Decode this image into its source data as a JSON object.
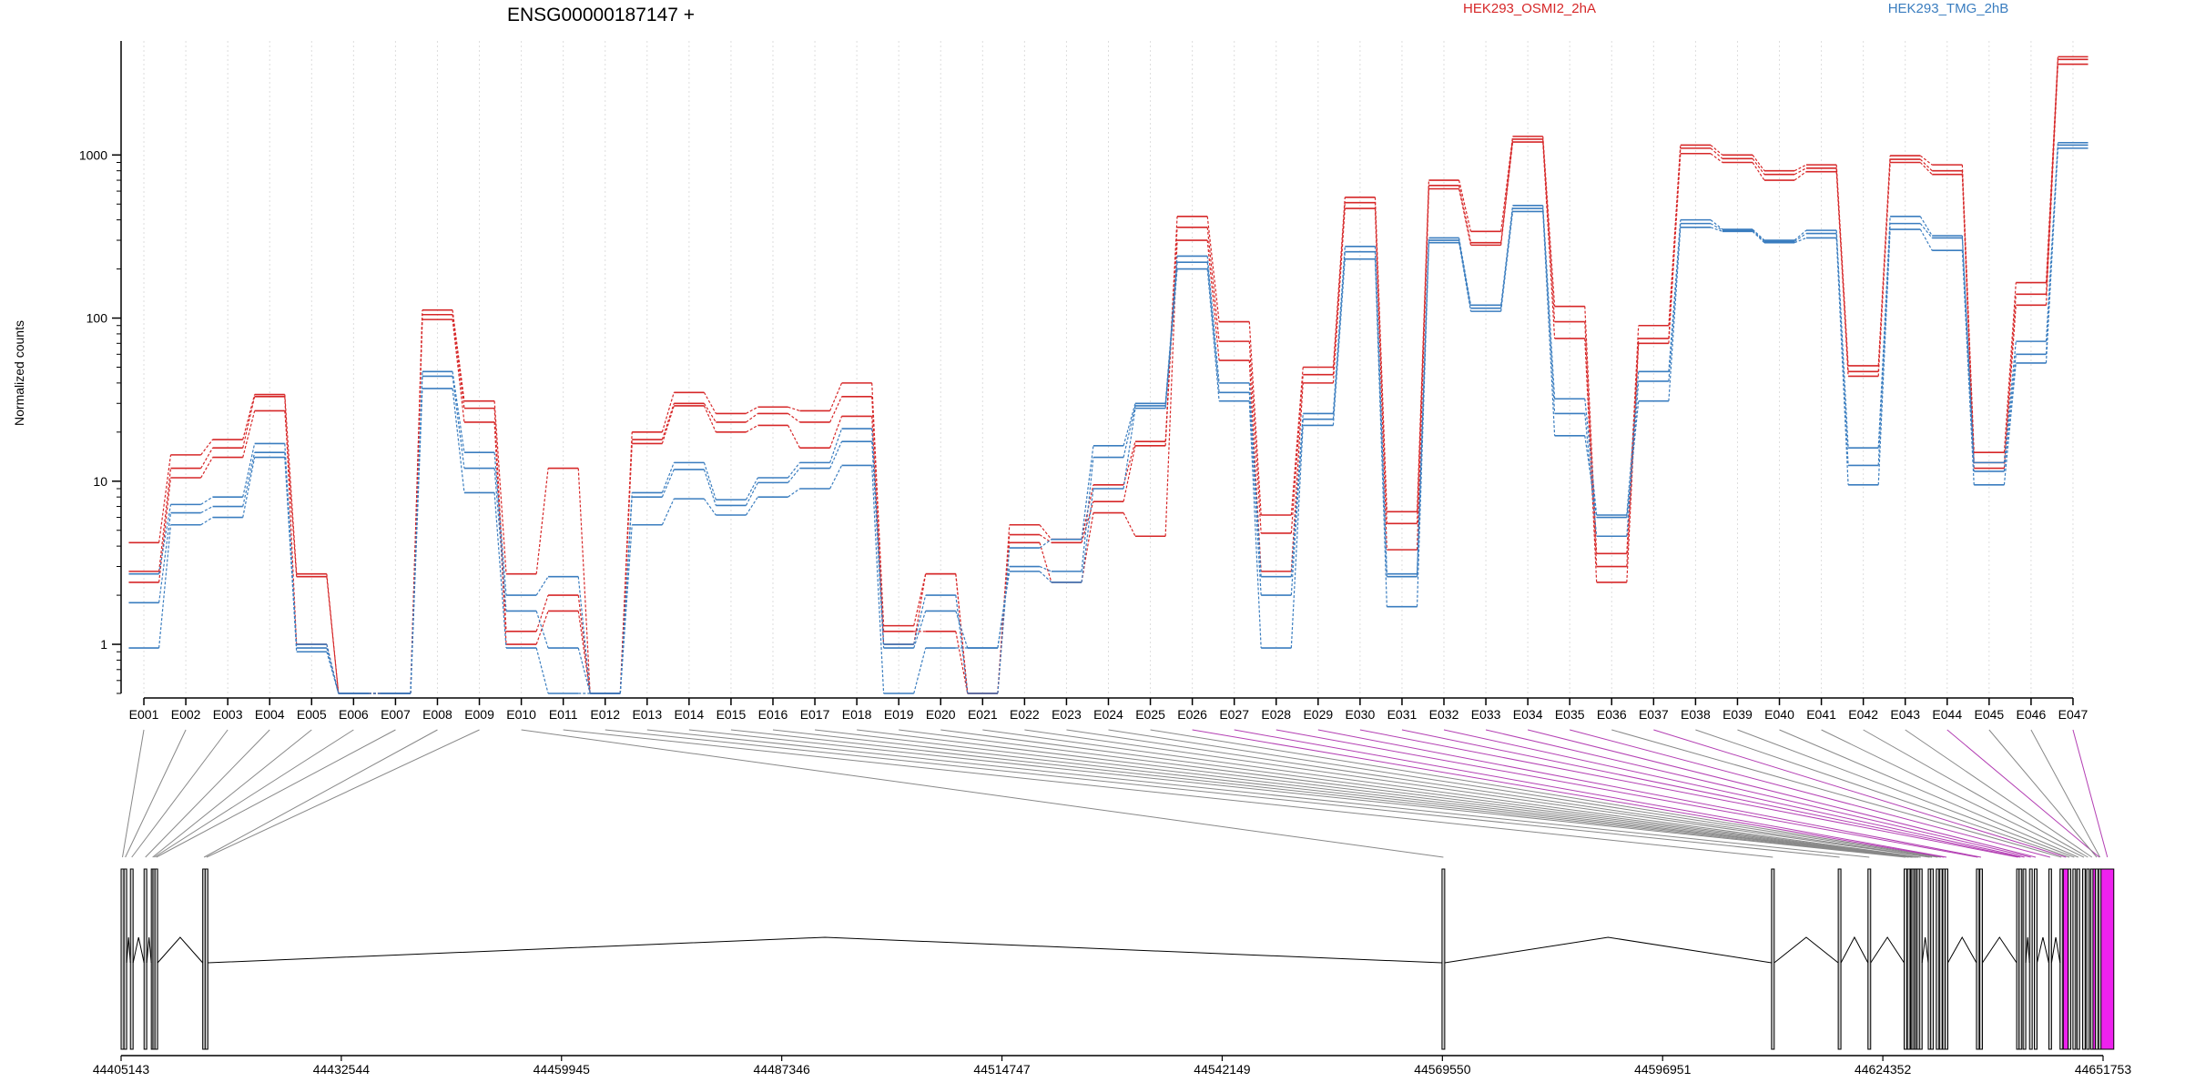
{
  "chart_data": {
    "type": "line",
    "title": "ENSG00000187147 +",
    "ylabel": "Normalized counts",
    "yscale": "log",
    "ylim": [
      0.5,
      5000
    ],
    "y_ticks": [
      {
        "value": 1,
        "label": "1"
      },
      {
        "value": 10,
        "label": "10"
      },
      {
        "value": 100,
        "label": "100"
      },
      {
        "value": 1000,
        "label": "1000"
      }
    ],
    "exons": [
      "E001",
      "E002",
      "E003",
      "E004",
      "E005",
      "E006",
      "E007",
      "E008",
      "E009",
      "E010",
      "E011",
      "E012",
      "E013",
      "E014",
      "E015",
      "E016",
      "E017",
      "E018",
      "E019",
      "E020",
      "E021",
      "E022",
      "E023",
      "E024",
      "E025",
      "E026",
      "E027",
      "E028",
      "E029",
      "E030",
      "E031",
      "E032",
      "E033",
      "E034",
      "E035",
      "E036",
      "E037",
      "E038",
      "E039",
      "E040",
      "E041",
      "E042",
      "E043",
      "E044",
      "E045",
      "E046",
      "E047"
    ],
    "series": [
      {
        "name": "HEK293_OSMI2_2hA",
        "color": "#d62728",
        "replicates": [
          [
            4.2,
            14.5,
            18,
            34,
            2.7,
            0.5,
            0.5,
            112,
            31,
            2.7,
            12,
            0.5,
            20,
            35,
            26,
            28.5,
            27,
            40,
            1.3,
            2.7,
            0.5,
            5.4,
            4.4,
            9.5,
            17.5,
            420,
            95,
            6.2,
            50,
            550,
            6.5,
            700,
            340,
            1300,
            118,
            3.6,
            90,
            1150,
            1000,
            800,
            870,
            51,
            990,
            870,
            15,
            165,
            4000
          ],
          [
            2.8,
            12,
            16,
            33,
            1.0,
            0.5,
            0.5,
            105,
            28,
            1.2,
            2.0,
            0.5,
            18,
            30,
            23,
            26,
            23,
            33,
            1.2,
            1.2,
            0.5,
            4.7,
            4.2,
            7.5,
            16.5,
            360,
            72,
            4.8,
            45,
            510,
            5.5,
            650,
            290,
            1250,
            95,
            3.0,
            75,
            1100,
            950,
            760,
            830,
            47,
            940,
            800,
            13,
            140,
            3850
          ],
          [
            2.4,
            10.5,
            14,
            27,
            2.6,
            0.5,
            0.5,
            98,
            23,
            1.0,
            1.6,
            0.5,
            17,
            29,
            20,
            22,
            16,
            25,
            1.0,
            2.7,
            0.5,
            4.2,
            2.4,
            6.4,
            4.6,
            300,
            55,
            2.8,
            40,
            470,
            3.8,
            620,
            280,
            1200,
            75,
            2.4,
            70,
            1020,
            900,
            700,
            790,
            44,
            900,
            760,
            12,
            120,
            3600
          ]
        ]
      },
      {
        "name": "HEK293_TMG_2hB",
        "color": "#3a7dbf",
        "replicates": [
          [
            2.7,
            7.2,
            8,
            17,
            1.0,
            0.5,
            0.5,
            47,
            15,
            2.0,
            2.6,
            0.5,
            8.5,
            13,
            7.7,
            10.5,
            13,
            21,
            1.0,
            2.0,
            0.5,
            3.9,
            4.4,
            16.5,
            30,
            240,
            40,
            2.6,
            26,
            275,
            2.7,
            310,
            120,
            490,
            32,
            6.2,
            47,
            400,
            350,
            300,
            345,
            16,
            420,
            320,
            13,
            72,
            1190
          ],
          [
            1.8,
            6.4,
            7,
            15,
            0.9,
            0.5,
            0.5,
            44,
            12,
            1.6,
            0.95,
            0.5,
            8,
            11.8,
            7.1,
            9.8,
            12,
            17.5,
            0.95,
            1.6,
            0.95,
            3,
            2.8,
            14,
            29,
            220,
            35,
            2,
            24,
            255,
            2.6,
            300,
            115,
            470,
            26,
            4.6,
            41,
            380,
            345,
            295,
            330,
            12.5,
            380,
            310,
            11.5,
            60,
            1150
          ],
          [
            0.95,
            5.4,
            6,
            14,
            0.95,
            0.5,
            0.5,
            37,
            8.5,
            0.95,
            0.5,
            0.5,
            5.4,
            7.8,
            6.2,
            8,
            9,
            12.5,
            0.5,
            0.95,
            0.95,
            2.8,
            2.4,
            9,
            28,
            200,
            31,
            0.95,
            22,
            230,
            1.7,
            290,
            110,
            450,
            19,
            6,
            31,
            360,
            340,
            290,
            310,
            9.5,
            350,
            260,
            9.5,
            53,
            1100
          ]
        ]
      }
    ],
    "genome_axis": {
      "range": [
        44405143,
        44651753
      ],
      "tick_labels": [
        "44405143",
        "44432544",
        "44459945",
        "44487346",
        "44514747",
        "44542149",
        "44569550",
        "44596951",
        "44624352",
        "44651753"
      ],
      "exon_starts": [
        44405143,
        44405500,
        44406300,
        44408000,
        44408900,
        44409100,
        44409350,
        44415300,
        44415600,
        44569500,
        44610500,
        44618800,
        44622500,
        44627000,
        44627400,
        44627800,
        44627950,
        44628200,
        44628400,
        44628600,
        44628900,
        44630000,
        44630300,
        44631000,
        44631400,
        44631800,
        44632100,
        44636000,
        44636400,
        44641000,
        44641300,
        44641800,
        44642600,
        44643200,
        44645000,
        44646400,
        44646800,
        44647400,
        44648000,
        44648500,
        44649200,
        44649700,
        44650200,
        44650500,
        44650800,
        44651200,
        44651500
      ],
      "highlighted_exons": [
        "E026",
        "E027",
        "E028",
        "E029",
        "E030",
        "E031",
        "E032",
        "E033",
        "E034",
        "E035",
        "E037",
        "E044",
        "E047"
      ],
      "highlight_color": "#ee22ee"
    },
    "grid": "vertical dotted lines per exon",
    "legend": "top-right"
  }
}
